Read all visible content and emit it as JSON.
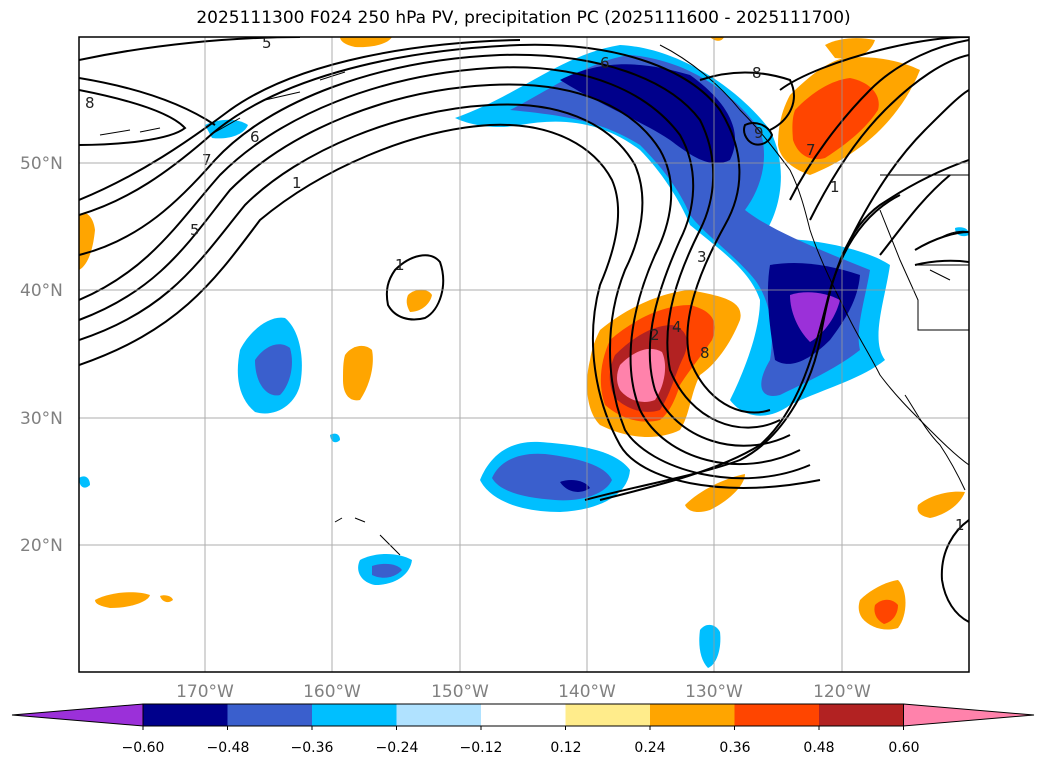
{
  "title": "2025111300 F024 250 hPa PV, precipitation PC (2025111600 - 2025111700)",
  "map": {
    "lat_labels": [
      "50°N",
      "40°N",
      "30°N",
      "20°N"
    ],
    "lon_labels": [
      "170°W",
      "160°W",
      "150°W",
      "140°W",
      "130°W",
      "120°W"
    ],
    "pv_contour_labels": [
      "5",
      "8",
      "6",
      "7",
      "1",
      "5",
      "1",
      "6",
      "8",
      "9",
      "7",
      "3",
      "2",
      "4",
      "8",
      "1",
      "1"
    ],
    "gridlines": true
  },
  "colorbar": {
    "ticks": [
      "−0.60",
      "−0.48",
      "−0.36",
      "−0.24",
      "−0.12",
      "0.12",
      "0.24",
      "0.36",
      "0.48",
      "0.60"
    ],
    "colors": [
      "#9b30d9",
      "#00008b",
      "#3a5fcd",
      "#00bfff",
      "#b0e2ff",
      "#ffffff",
      "#ffec8b",
      "#ffa500",
      "#ff4500",
      "#b22222",
      "#ff82ab"
    ],
    "extend": "both"
  }
}
